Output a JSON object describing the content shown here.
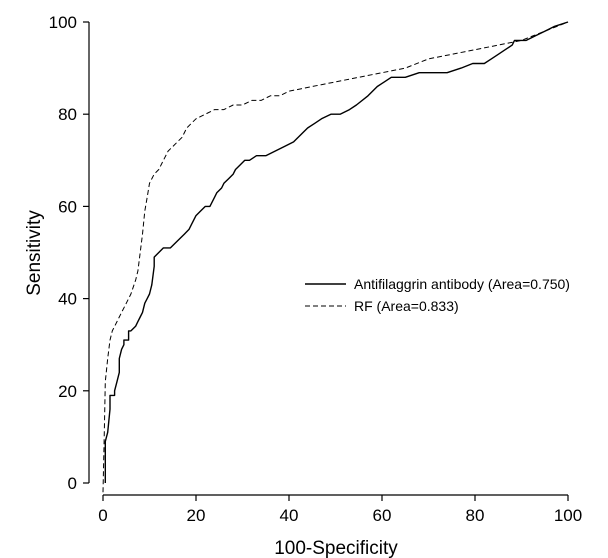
{
  "chart_data": {
    "type": "line",
    "title": "",
    "xlabel": "100-Specificity",
    "ylabel": "Sensitivity",
    "xlim": [
      0,
      100
    ],
    "ylim": [
      0,
      100
    ],
    "xticks": [
      0,
      20,
      40,
      60,
      80,
      100
    ],
    "yticks": [
      0,
      20,
      40,
      60,
      80,
      100
    ],
    "grid": false,
    "legend_position": "right-center",
    "series": [
      {
        "name": "Antifilaggrin antibody (Area=0.750)",
        "style": "solid",
        "color": "#000000",
        "x": [
          0.5,
          0.5,
          1.0,
          1.5,
          1.5,
          2.5,
          2.5,
          3.0,
          3.5,
          3.5,
          4.0,
          4.5,
          4.5,
          5.5,
          5.5,
          6.0,
          7.0,
          7.5,
          8.0,
          8.5,
          9.0,
          9.5,
          10.0,
          10.5,
          11.0,
          11.0,
          12.0,
          13.0,
          14.5,
          15.5,
          17.5,
          18.5,
          19.0,
          20.0,
          21.0,
          22.0,
          23.0,
          24.0,
          24.5,
          25.5,
          26.0,
          27.0,
          28.0,
          28.5,
          29.5,
          30.5,
          31.5,
          33.0,
          35.0,
          37.0,
          39.0,
          41.0,
          43.0,
          44.0,
          45.5,
          47.0,
          49.0,
          51.0,
          53.0,
          54.5,
          57.0,
          59.0,
          60.5,
          62.0,
          65.0,
          68.0,
          71.0,
          74.0,
          77.0,
          79.5,
          82.0,
          83.5,
          85.0,
          86.5,
          88.0,
          88.5,
          89.5,
          91.0,
          93.0,
          95.0,
          97.0,
          100.0
        ],
        "y": [
          0,
          9,
          11,
          16,
          19,
          19,
          20,
          22,
          24,
          27,
          29,
          30,
          31,
          31,
          33,
          33,
          34,
          35,
          36,
          37,
          39,
          40,
          41,
          43,
          47,
          49,
          50,
          51,
          51,
          52,
          54,
          55,
          56,
          58,
          59,
          60,
          60,
          62,
          63,
          64,
          65,
          66,
          67,
          68,
          69,
          70,
          70,
          71,
          71,
          72,
          73,
          74,
          76,
          77,
          78,
          79,
          80,
          80,
          81,
          82,
          84,
          86,
          87,
          88,
          88,
          89,
          89,
          89,
          90,
          91,
          91,
          92,
          93,
          94,
          95,
          96,
          96,
          96,
          97,
          98,
          99,
          100
        ]
      },
      {
        "name": "RF (Area=0.833)",
        "style": "dashed",
        "color": "#000000",
        "x": [
          0.0,
          0.3,
          0.5,
          1.0,
          1.5,
          2.0,
          3.0,
          4.0,
          5.0,
          6.0,
          7.0,
          7.5,
          8.0,
          8.5,
          9.0,
          9.5,
          10.0,
          11.0,
          12.0,
          13.0,
          14.0,
          15.0,
          16.0,
          17.0,
          18.0,
          19.0,
          20.0,
          22.0,
          24.0,
          26.0,
          28.0,
          30.0,
          32.0,
          34.0,
          36.0,
          38.0,
          40.0,
          45.0,
          50.0,
          55.0,
          60.0,
          65.0,
          70.0,
          75.0,
          80.0,
          85.0,
          90.0,
          95.0,
          100.0
        ],
        "y": [
          -2,
          12,
          22,
          27,
          31,
          33,
          35,
          37,
          39,
          41,
          44,
          46,
          50,
          54,
          59,
          62,
          65,
          67,
          68,
          70,
          72,
          73,
          74,
          75,
          77,
          78,
          79,
          80,
          81,
          81,
          82,
          82,
          83,
          83,
          84,
          84,
          85,
          86,
          87,
          88,
          89,
          90,
          92,
          93,
          94,
          95,
          96,
          98,
          100
        ]
      }
    ]
  }
}
